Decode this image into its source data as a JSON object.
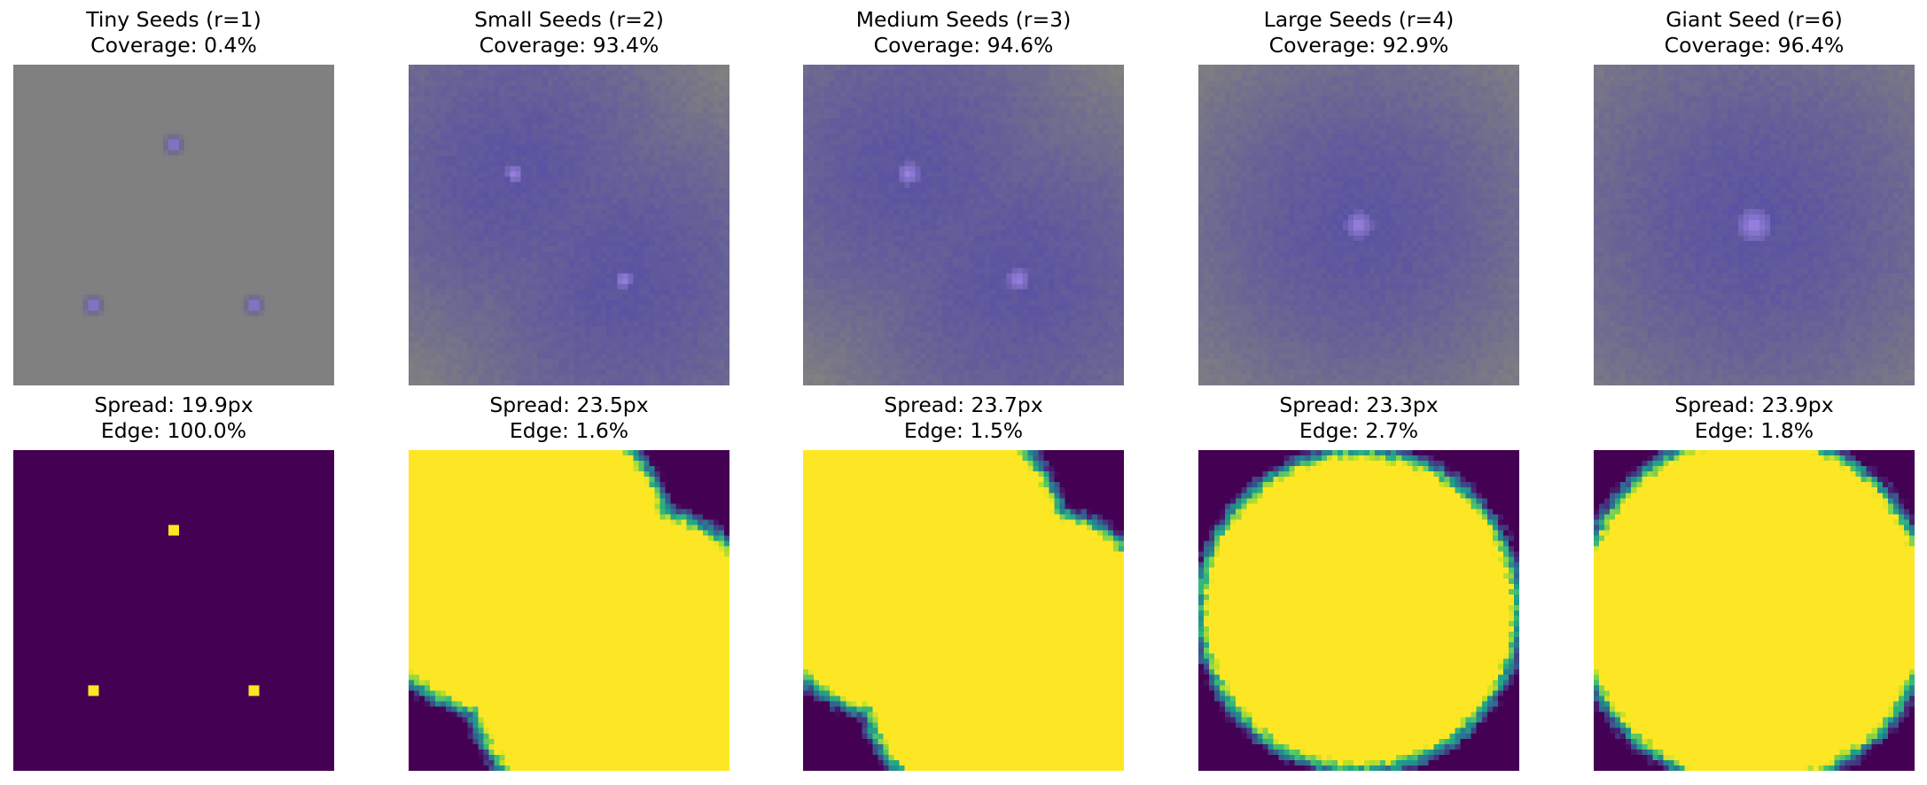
{
  "colors": {
    "background": "#808080",
    "seed_tint": "#4a3fb0",
    "seed_core": "#b497ff",
    "viridis": [
      "#440154",
      "#482878",
      "#3e4989",
      "#31688e",
      "#26828e",
      "#1f9e89",
      "#35b779",
      "#6ece58",
      "#b5de2b",
      "#fde725"
    ]
  },
  "chart_data": [
    {
      "type": "heatmap",
      "title": "Tiny Seeds (r=1)",
      "subtitle": "Coverage: 0.4%",
      "view": "diffusion",
      "seed_radius": 1,
      "coverage_percent": 0.4,
      "seeds": [
        [
          0.5,
          0.25
        ],
        [
          0.25,
          0.75
        ],
        [
          0.75,
          0.75
        ]
      ],
      "spread_relative": 0.0
    },
    {
      "type": "heatmap",
      "title": "Small Seeds (r=2)",
      "subtitle": "Coverage: 93.4%",
      "view": "diffusion",
      "seed_radius": 2,
      "coverage_percent": 93.4,
      "seeds": [
        [
          0.33,
          0.34
        ],
        [
          0.67,
          0.67
        ]
      ],
      "spread_relative": 0.5
    },
    {
      "type": "heatmap",
      "title": "Medium Seeds (r=3)",
      "subtitle": "Coverage: 94.6%",
      "view": "diffusion",
      "seed_radius": 3,
      "coverage_percent": 94.6,
      "seeds": [
        [
          0.33,
          0.34
        ],
        [
          0.67,
          0.67
        ]
      ],
      "spread_relative": 0.5
    },
    {
      "type": "heatmap",
      "title": "Large Seeds (r=4)",
      "subtitle": "Coverage: 92.9%",
      "view": "diffusion",
      "seed_radius": 4,
      "coverage_percent": 92.9,
      "seeds": [
        [
          0.5,
          0.5
        ]
      ],
      "spread_relative": 0.5
    },
    {
      "type": "heatmap",
      "title": "Giant Seed (r=6)",
      "subtitle": "Coverage: 96.4%",
      "view": "diffusion",
      "seed_radius": 6,
      "coverage_percent": 96.4,
      "seeds": [
        [
          0.5,
          0.5
        ]
      ],
      "spread_relative": 0.55
    },
    {
      "type": "heatmap",
      "title": "Spread: 19.9px",
      "subtitle": "Edge: 100.0%",
      "view": "mask",
      "spread_px": 19.9,
      "edge_percent": 100.0,
      "seeds": [
        [
          0.5,
          0.25
        ],
        [
          0.25,
          0.75
        ],
        [
          0.75,
          0.75
        ]
      ],
      "spread_relative": 0.0
    },
    {
      "type": "heatmap",
      "title": "Spread: 23.5px",
      "subtitle": "Edge: 1.6%",
      "view": "mask",
      "spread_px": 23.5,
      "edge_percent": 1.6,
      "seeds": [
        [
          0.33,
          0.34
        ],
        [
          0.67,
          0.67
        ]
      ],
      "spread_relative": 0.5
    },
    {
      "type": "heatmap",
      "title": "Spread: 23.7px",
      "subtitle": "Edge: 1.5%",
      "view": "mask",
      "spread_px": 23.7,
      "edge_percent": 1.5,
      "seeds": [
        [
          0.33,
          0.34
        ],
        [
          0.67,
          0.67
        ]
      ],
      "spread_relative": 0.5
    },
    {
      "type": "heatmap",
      "title": "Spread: 23.3px",
      "subtitle": "Edge: 2.7%",
      "view": "mask",
      "spread_px": 23.3,
      "edge_percent": 2.7,
      "seeds": [
        [
          0.5,
          0.5
        ]
      ],
      "spread_relative": 0.5
    },
    {
      "type": "heatmap",
      "title": "Spread: 23.9px",
      "subtitle": "Edge: 1.8%",
      "view": "mask",
      "spread_px": 23.9,
      "edge_percent": 1.8,
      "seeds": [
        [
          0.5,
          0.5
        ]
      ],
      "spread_relative": 0.55
    }
  ]
}
